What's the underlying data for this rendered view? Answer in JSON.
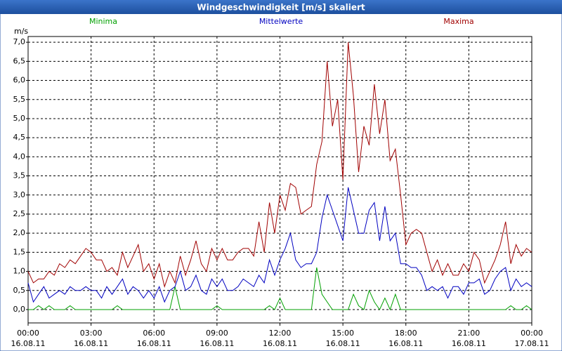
{
  "chart_data": {
    "type": "line",
    "title": "Windgeschwindigkeit [m/s] skaliert",
    "y_label": "m/s",
    "x": [
      0,
      0.25,
      0.5,
      0.75,
      1,
      1.25,
      1.5,
      1.75,
      2,
      2.25,
      2.5,
      2.75,
      3,
      3.25,
      3.5,
      3.75,
      4,
      4.25,
      4.5,
      4.75,
      5,
      5.25,
      5.5,
      5.75,
      6,
      6.25,
      6.5,
      6.75,
      7,
      7.25,
      7.5,
      7.75,
      8,
      8.25,
      8.5,
      8.75,
      9,
      9.25,
      9.5,
      9.75,
      10,
      10.25,
      10.5,
      10.75,
      11,
      11.25,
      11.5,
      11.75,
      12,
      12.25,
      12.5,
      12.75,
      13,
      13.25,
      13.5,
      13.75,
      14,
      14.25,
      14.5,
      14.75,
      15,
      15.25,
      15.5,
      15.75,
      16,
      16.25,
      16.5,
      16.75,
      17,
      17.25,
      17.5,
      17.75,
      18,
      18.25,
      18.5,
      18.75,
      19,
      19.25,
      19.5,
      19.75,
      20,
      20.25,
      20.5,
      20.75,
      21,
      21.25,
      21.5,
      21.75,
      22,
      22.25,
      22.5,
      22.75,
      23,
      23.25,
      23.5,
      23.75,
      24
    ],
    "series": [
      {
        "name": "Minima",
        "color": "#00a000",
        "values": [
          0,
          0,
          0.1,
          0,
          0.1,
          0,
          0,
          0,
          0.1,
          0,
          0,
          0,
          0,
          0,
          0,
          0,
          0,
          0.1,
          0,
          0,
          0,
          0,
          0,
          0,
          0,
          0,
          0,
          0,
          0.6,
          0,
          0,
          0,
          0,
          0,
          0,
          0,
          0.1,
          0,
          0,
          0,
          0,
          0,
          0,
          0,
          0,
          0,
          0.1,
          0,
          0.3,
          0,
          0,
          0,
          0,
          0,
          0,
          1.1,
          0.4,
          0.2,
          0,
          0,
          0,
          0,
          0.4,
          0.1,
          0,
          0.5,
          0.2,
          0,
          0.3,
          0,
          0.4,
          0,
          0,
          0,
          0,
          0,
          0,
          0,
          0,
          0,
          0,
          0,
          0,
          0,
          0,
          0,
          0,
          0,
          0,
          0,
          0,
          0,
          0.1,
          0,
          0,
          0.1,
          0
        ]
      },
      {
        "name": "Mittelwerte",
        "color": "#0000c0",
        "values": [
          0.7,
          0.2,
          0.4,
          0.6,
          0.3,
          0.4,
          0.5,
          0.4,
          0.6,
          0.5,
          0.5,
          0.6,
          0.5,
          0.5,
          0.3,
          0.6,
          0.4,
          0.6,
          0.8,
          0.4,
          0.6,
          0.5,
          0.3,
          0.5,
          0.3,
          0.6,
          0.2,
          0.5,
          0.6,
          1.0,
          0.5,
          0.6,
          0.9,
          0.5,
          0.4,
          0.8,
          0.6,
          0.8,
          0.5,
          0.5,
          0.6,
          0.8,
          0.7,
          0.6,
          0.9,
          0.7,
          1.3,
          0.9,
          1.3,
          1.6,
          2.0,
          1.3,
          1.1,
          1.2,
          1.2,
          1.5,
          2.4,
          3.0,
          2.6,
          2.2,
          1.8,
          3.2,
          2.6,
          2.0,
          2.0,
          2.6,
          2.8,
          1.8,
          2.7,
          1.8,
          2.0,
          1.2,
          1.2,
          1.1,
          1.1,
          0.9,
          0.5,
          0.6,
          0.5,
          0.6,
          0.3,
          0.6,
          0.6,
          0.4,
          0.7,
          0.7,
          0.8,
          0.4,
          0.5,
          0.8,
          1.0,
          1.1,
          0.5,
          0.8,
          0.6,
          0.7,
          0.6
        ]
      },
      {
        "name": "Maxima",
        "color": "#a00000",
        "values": [
          1.0,
          0.7,
          0.8,
          0.8,
          1.0,
          0.9,
          1.2,
          1.1,
          1.3,
          1.2,
          1.4,
          1.6,
          1.5,
          1.3,
          1.3,
          1.0,
          1.1,
          0.9,
          1.5,
          1.1,
          1.4,
          1.7,
          1.0,
          1.2,
          0.8,
          1.2,
          0.6,
          1.0,
          0.7,
          1.4,
          0.9,
          1.3,
          1.8,
          1.2,
          1.0,
          1.6,
          1.3,
          1.6,
          1.3,
          1.3,
          1.5,
          1.6,
          1.6,
          1.4,
          2.3,
          1.5,
          2.8,
          2.0,
          3.0,
          2.6,
          3.3,
          3.2,
          2.5,
          2.6,
          2.7,
          3.8,
          4.4,
          6.5,
          4.8,
          5.5,
          3.4,
          7.0,
          5.6,
          3.6,
          4.8,
          4.3,
          5.9,
          4.6,
          5.5,
          3.9,
          4.2,
          3.0,
          1.7,
          2.0,
          2.1,
          2.0,
          1.5,
          1.0,
          1.3,
          0.9,
          1.2,
          0.9,
          0.9,
          1.2,
          1.0,
          1.5,
          1.3,
          0.7,
          1.0,
          1.3,
          1.7,
          2.3,
          1.2,
          1.7,
          1.4,
          1.6,
          1.5
        ]
      }
    ],
    "xlim": [
      0,
      24
    ],
    "xticks": [
      {
        "value": 0,
        "label": "00:00"
      },
      {
        "value": 3,
        "label": "03:00"
      },
      {
        "value": 6,
        "label": "06:00"
      },
      {
        "value": 9,
        "label": "09:00"
      },
      {
        "value": 12,
        "label": "12:00"
      },
      {
        "value": 15,
        "label": "15:00"
      },
      {
        "value": 18,
        "label": "18:00"
      },
      {
        "value": 21,
        "label": "21:00"
      },
      {
        "value": 24,
        "label": "00:00"
      }
    ],
    "xtick_dates": [
      "16.08.11",
      "16.08.11",
      "16.08.11",
      "16.08.11",
      "16.08.11",
      "16.08.11",
      "16.08.11",
      "16.08.11",
      "17.08.11"
    ],
    "ylim": [
      -0.35,
      7.15
    ],
    "yticks": [
      {
        "value": 0,
        "label": "0,0"
      },
      {
        "value": 0.5,
        "label": "0,5"
      },
      {
        "value": 1,
        "label": "1,0"
      },
      {
        "value": 1.5,
        "label": "1,5"
      },
      {
        "value": 2,
        "label": "2,0"
      },
      {
        "value": 2.5,
        "label": "2,5"
      },
      {
        "value": 3,
        "label": "3,0"
      },
      {
        "value": 3.5,
        "label": "3,5"
      },
      {
        "value": 4,
        "label": "4,0"
      },
      {
        "value": 4.5,
        "label": "4,5"
      },
      {
        "value": 5,
        "label": "5,0"
      },
      {
        "value": 5.5,
        "label": "5,5"
      },
      {
        "value": 6,
        "label": "6,0"
      },
      {
        "value": 6.5,
        "label": "6,5"
      },
      {
        "value": 7,
        "label": "7,0"
      }
    ],
    "grid": true
  }
}
